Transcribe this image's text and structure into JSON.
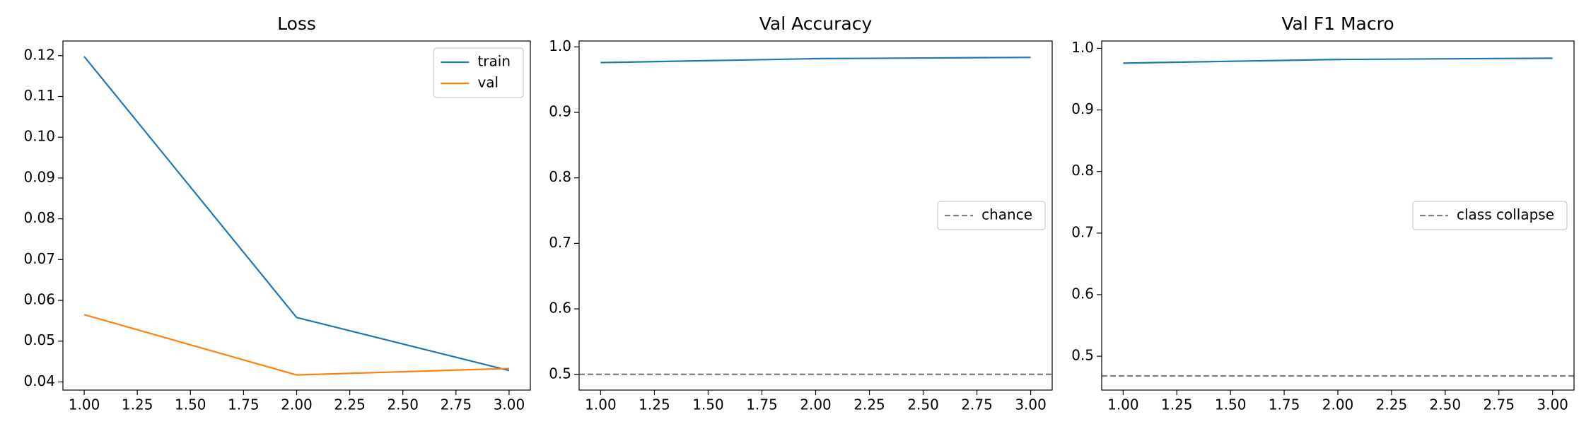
{
  "chart_data": [
    {
      "type": "line",
      "title": "Loss",
      "x": [
        1,
        2,
        3
      ],
      "series": [
        {
          "name": "train",
          "color": "#1f77b4",
          "values": [
            0.1198,
            0.0558,
            0.0428
          ]
        },
        {
          "name": "val",
          "color": "#ff7f0e",
          "values": [
            0.0565,
            0.0417,
            0.0433
          ]
        }
      ],
      "xlim": [
        0.9,
        3.1
      ],
      "xticks": [
        {
          "value": 1,
          "label": "1.00"
        },
        {
          "value": 1.25,
          "label": "1.25"
        },
        {
          "value": 1.5,
          "label": "1.50"
        },
        {
          "value": 1.75,
          "label": "1.75"
        },
        {
          "value": 2,
          "label": "2.00"
        },
        {
          "value": 2.25,
          "label": "2.25"
        },
        {
          "value": 2.5,
          "label": "2.50"
        },
        {
          "value": 2.75,
          "label": "2.75"
        },
        {
          "value": 3,
          "label": "3.00"
        }
      ],
      "ylim": [
        0.038,
        0.1236
      ],
      "yticks": [
        0.04,
        0.05,
        0.06,
        0.07,
        0.08,
        0.09,
        {
          "value": 0.1,
          "label": "0.10"
        },
        0.11,
        0.12
      ],
      "legend": "upper right"
    },
    {
      "type": "line",
      "title": "Val Accuracy",
      "x": [
        1,
        2,
        3
      ],
      "series": [
        {
          "name": null,
          "color": "#1f77b4",
          "values": [
            0.976,
            0.982,
            0.984
          ]
        }
      ],
      "reference_line": {
        "name": "chance",
        "value": 0.5,
        "color": "#7f7f7f"
      },
      "xlim": [
        0.9,
        3.1
      ],
      "xticks": [
        {
          "value": 1,
          "label": "1.00"
        },
        {
          "value": 1.25,
          "label": "1.25"
        },
        {
          "value": 1.5,
          "label": "1.50"
        },
        {
          "value": 1.75,
          "label": "1.75"
        },
        {
          "value": 2,
          "label": "2.00"
        },
        {
          "value": 2.25,
          "label": "2.25"
        },
        {
          "value": 2.5,
          "label": "2.50"
        },
        {
          "value": 2.75,
          "label": "2.75"
        },
        {
          "value": 3,
          "label": "3.00"
        }
      ],
      "ylim": [
        0.476,
        1.009
      ],
      "yticks": [
        0.5,
        0.6,
        0.7,
        0.8,
        0.9,
        {
          "value": 1,
          "label": "1.0"
        }
      ],
      "legend": "center right"
    },
    {
      "type": "line",
      "title": "Val F1 Macro",
      "x": [
        1,
        2,
        3
      ],
      "series": [
        {
          "name": null,
          "color": "#1f77b4",
          "values": [
            0.976,
            0.982,
            0.984
          ]
        }
      ],
      "reference_line": {
        "name": "class collapse",
        "value": 0.468,
        "color": "#7f7f7f"
      },
      "xlim": [
        0.9,
        3.1
      ],
      "xticks": [
        {
          "value": 1,
          "label": "1.00"
        },
        {
          "value": 1.25,
          "label": "1.25"
        },
        {
          "value": 1.5,
          "label": "1.50"
        },
        {
          "value": 1.75,
          "label": "1.75"
        },
        {
          "value": 2,
          "label": "2.00"
        },
        {
          "value": 2.25,
          "label": "2.25"
        },
        {
          "value": 2.5,
          "label": "2.50"
        },
        {
          "value": 2.75,
          "label": "2.75"
        },
        {
          "value": 3,
          "label": "3.00"
        }
      ],
      "ylim": [
        0.445,
        1.012
      ],
      "yticks": [
        0.5,
        0.6,
        0.7,
        0.8,
        0.9,
        {
          "value": 1,
          "label": "1.0"
        }
      ],
      "legend": "center right"
    }
  ]
}
